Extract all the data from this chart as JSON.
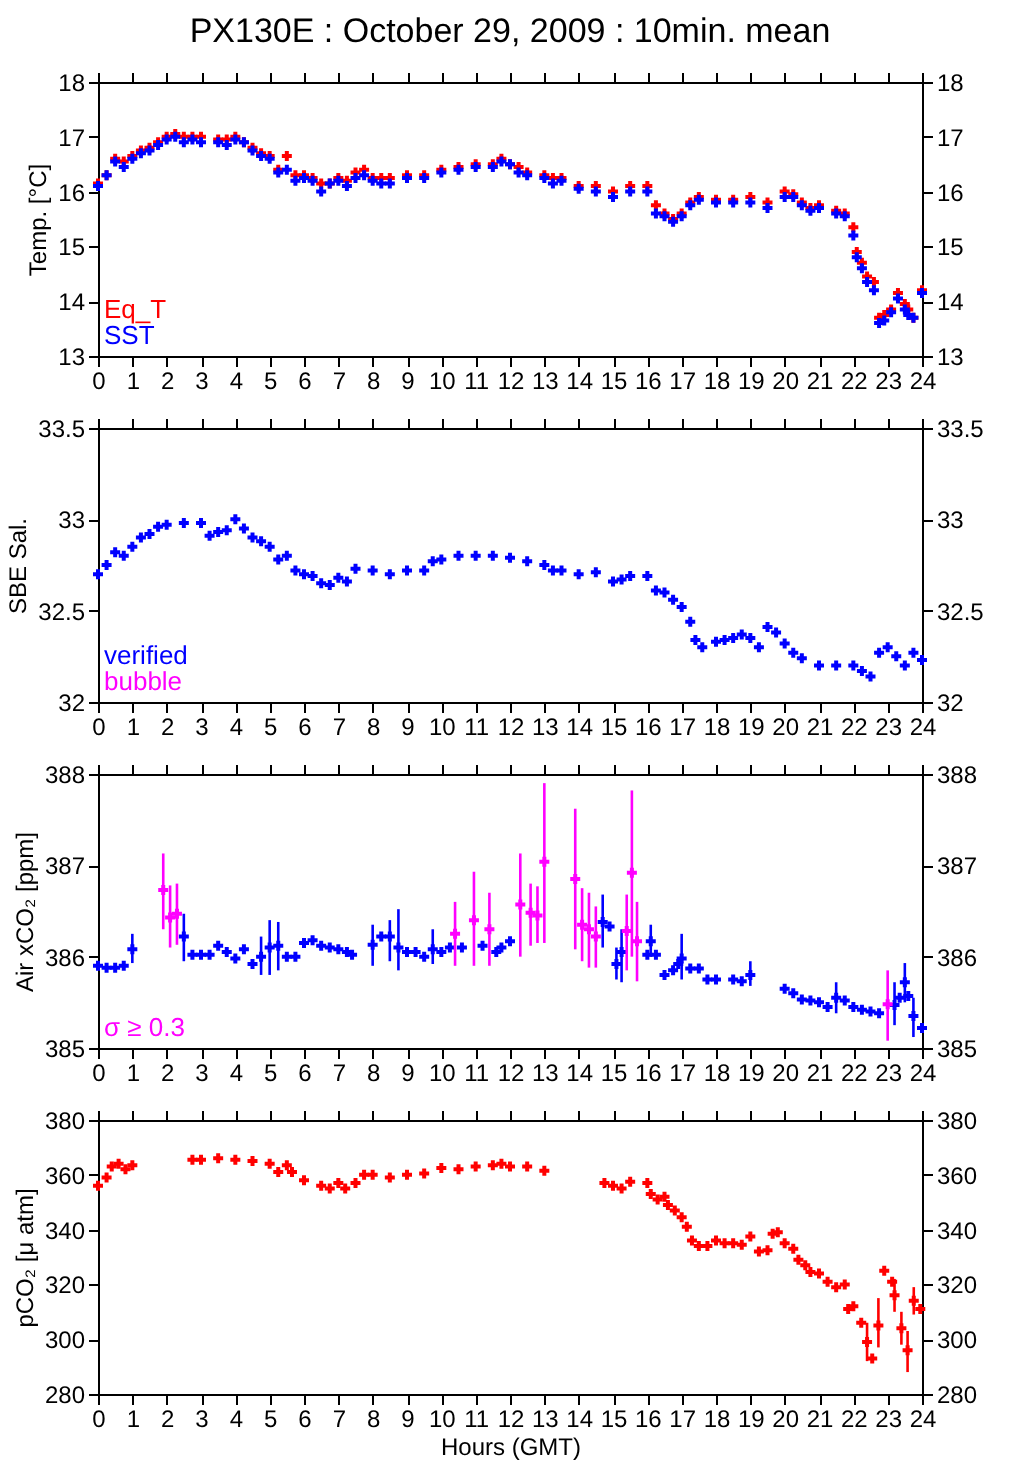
{
  "chart_data": [
    {
      "type": "scatter",
      "title": "PX130E : October 29, 2009 : 10min. mean",
      "ylabel": "Temp. [°C]",
      "xlim": [
        0,
        24
      ],
      "xticks": [
        0,
        1,
        2,
        3,
        4,
        5,
        6,
        7,
        8,
        9,
        10,
        11,
        12,
        13,
        14,
        15,
        16,
        17,
        18,
        19,
        20,
        21,
        22,
        23,
        24
      ],
      "ylim": [
        13,
        18
      ],
      "yticks": [
        13,
        14,
        15,
        16,
        17,
        18
      ],
      "y2lim": [
        13,
        18
      ],
      "y2ticks": [
        13,
        14,
        15,
        16,
        17,
        18
      ],
      "marker": "cross",
      "legend": "bottom left",
      "x": [
        0,
        0.25,
        0.5,
        0.75,
        1,
        1.25,
        1.5,
        1.75,
        2,
        2.25,
        2.5,
        2.75,
        3,
        3.5,
        3.75,
        4,
        4.25,
        4.5,
        4.75,
        5,
        5.25,
        5.5,
        5.75,
        6,
        6.25,
        6.5,
        6.75,
        7,
        7.25,
        7.5,
        7.75,
        8,
        8.25,
        8.5,
        9,
        9.5,
        10,
        10.5,
        11,
        11.5,
        11.75,
        12,
        12.25,
        12.5,
        13,
        13.25,
        13.5,
        14,
        14.5,
        15,
        15.5,
        16,
        16.25,
        16.5,
        16.75,
        17,
        17.25,
        17.5,
        18,
        18.5,
        19,
        19.5,
        20,
        20.25,
        20.5,
        20.75,
        21,
        21.5,
        21.75,
        22,
        22.1,
        22.25,
        22.4,
        22.6,
        22.75,
        22.9,
        23.1,
        23.3,
        23.5,
        23.6,
        23.75,
        24
      ],
      "series": [
        {
          "name": "Eq_T",
          "color": "#ff0000",
          "values": [
            16.15,
            16.3,
            16.6,
            16.55,
            16.65,
            16.75,
            16.8,
            16.9,
            17.0,
            17.05,
            17.0,
            17.0,
            17.0,
            16.95,
            16.95,
            17.0,
            16.9,
            16.8,
            16.7,
            16.65,
            16.4,
            16.65,
            16.3,
            16.3,
            16.25,
            16.15,
            16.15,
            16.25,
            16.2,
            16.35,
            16.4,
            16.25,
            16.25,
            16.25,
            16.3,
            16.3,
            16.4,
            16.45,
            16.5,
            16.5,
            16.6,
            16.5,
            16.45,
            16.35,
            16.3,
            16.25,
            16.25,
            16.1,
            16.1,
            16.0,
            16.1,
            16.1,
            15.75,
            15.6,
            15.5,
            15.6,
            15.8,
            15.9,
            15.85,
            15.85,
            15.9,
            15.8,
            16.0,
            15.95,
            15.8,
            15.7,
            15.75,
            15.65,
            15.6,
            15.35,
            14.9,
            14.7,
            14.45,
            14.35,
            13.7,
            13.75,
            13.85,
            14.15,
            13.95,
            13.85,
            13.7,
            14.2
          ]
        },
        {
          "name": "SST",
          "color": "#0000ff",
          "values": [
            16.1,
            16.3,
            16.55,
            16.45,
            16.6,
            16.7,
            16.75,
            16.85,
            16.95,
            17.0,
            16.9,
            16.95,
            16.9,
            16.9,
            16.85,
            16.95,
            16.9,
            16.75,
            16.65,
            16.6,
            16.35,
            16.4,
            16.2,
            16.25,
            16.2,
            16.0,
            16.15,
            16.2,
            16.1,
            16.25,
            16.3,
            16.2,
            16.15,
            16.15,
            16.25,
            16.25,
            16.35,
            16.4,
            16.45,
            16.45,
            16.55,
            16.5,
            16.35,
            16.3,
            16.25,
            16.15,
            16.2,
            16.05,
            16.0,
            15.9,
            16.0,
            16.0,
            15.6,
            15.55,
            15.45,
            15.55,
            15.75,
            15.85,
            15.8,
            15.8,
            15.8,
            15.7,
            15.9,
            15.9,
            15.75,
            15.65,
            15.7,
            15.6,
            15.55,
            15.2,
            14.8,
            14.6,
            14.35,
            14.2,
            13.6,
            13.65,
            13.8,
            14.05,
            13.85,
            13.75,
            13.7,
            14.15
          ]
        }
      ]
    },
    {
      "type": "scatter",
      "ylabel": "SBE Sal.",
      "xlim": [
        0,
        24
      ],
      "xticks": [
        0,
        1,
        2,
        3,
        4,
        5,
        6,
        7,
        8,
        9,
        10,
        11,
        12,
        13,
        14,
        15,
        16,
        17,
        18,
        19,
        20,
        21,
        22,
        23,
        24
      ],
      "ylim": [
        32,
        33.5
      ],
      "yticks": [
        32,
        32.5,
        33,
        33.5
      ],
      "y2lim": [
        32,
        33.5
      ],
      "y2ticks": [
        32,
        32.5,
        33,
        33.5
      ],
      "marker": "cross",
      "legend": "bottom left",
      "series": [
        {
          "name": "verified",
          "color": "#0000ff",
          "x": [
            0,
            0.25,
            0.5,
            0.75,
            1,
            1.25,
            1.5,
            1.75,
            2,
            2.5,
            3,
            3.25,
            3.5,
            3.75,
            4,
            4.25,
            4.5,
            4.75,
            5,
            5.25,
            5.5,
            5.75,
            6,
            6.25,
            6.5,
            6.75,
            7,
            7.25,
            7.5,
            8,
            8.5,
            9,
            9.5,
            9.75,
            10,
            10.5,
            11,
            11.5,
            12,
            12.5,
            13,
            13.25,
            13.5,
            14,
            14.5,
            15,
            15.25,
            15.5,
            16,
            16.25,
            16.5,
            16.75,
            17,
            17.25,
            17.4,
            17.6,
            18,
            18.25,
            18.5,
            18.75,
            19,
            19.25,
            19.5,
            19.75,
            20,
            20.25,
            20.5,
            21,
            21.5,
            22,
            22.25,
            22.5,
            22.75,
            23,
            23.25,
            23.5,
            23.75,
            24
          ],
          "values": [
            32.7,
            32.75,
            32.82,
            32.8,
            32.85,
            32.9,
            32.92,
            32.96,
            32.97,
            32.98,
            32.98,
            32.91,
            32.93,
            32.94,
            33.0,
            32.95,
            32.9,
            32.88,
            32.85,
            32.78,
            32.8,
            32.72,
            32.7,
            32.69,
            32.65,
            32.64,
            32.68,
            32.66,
            32.73,
            32.72,
            32.7,
            32.72,
            32.72,
            32.77,
            32.78,
            32.8,
            32.8,
            32.8,
            32.79,
            32.77,
            32.75,
            32.72,
            32.72,
            32.7,
            32.71,
            32.66,
            32.67,
            32.69,
            32.69,
            32.61,
            32.6,
            32.56,
            32.52,
            32.44,
            32.34,
            32.3,
            32.33,
            32.34,
            32.35,
            32.37,
            32.35,
            32.3,
            32.41,
            32.38,
            32.32,
            32.27,
            32.24,
            32.2,
            32.2,
            32.2,
            32.17,
            32.14,
            32.27,
            32.3,
            32.25,
            32.2,
            32.27,
            32.23
          ]
        },
        {
          "name": "bubble",
          "color": "#ff00ff"
        }
      ]
    },
    {
      "type": "scatter",
      "ylabel": "Air xCO₂ [ppm]",
      "xlim": [
        0,
        24
      ],
      "xticks": [
        0,
        1,
        2,
        3,
        4,
        5,
        6,
        7,
        8,
        9,
        10,
        11,
        12,
        13,
        14,
        15,
        16,
        17,
        18,
        19,
        20,
        21,
        22,
        23,
        24
      ],
      "ylim": [
        385,
        388
      ],
      "yticks": [
        385,
        386,
        387,
        388
      ],
      "y2lim": [
        385,
        388
      ],
      "y2ticks": [
        385,
        386,
        387,
        388
      ],
      "marker": "cross",
      "legend": "bottom left",
      "series": [
        {
          "color": "#0000ff",
          "x": [
            0,
            0.25,
            0.5,
            0.75,
            1,
            2.5,
            2.75,
            3,
            3.25,
            3.5,
            3.75,
            4,
            4.25,
            4.5,
            4.75,
            5,
            5.25,
            5.5,
            5.75,
            6,
            6.25,
            6.5,
            6.75,
            7,
            7.25,
            7.4,
            8,
            8.25,
            8.5,
            8.75,
            9,
            9.25,
            9.5,
            9.75,
            10,
            10.25,
            10.6,
            11.2,
            11.6,
            11.75,
            12,
            14.7,
            14.9,
            15.1,
            15.25,
            16,
            16.1,
            16.25,
            16.5,
            16.75,
            16.9,
            17,
            17.25,
            17.5,
            17.75,
            18,
            18.5,
            18.75,
            19,
            20,
            20.25,
            20.5,
            20.75,
            21,
            21.25,
            21.5,
            21.75,
            22,
            22.25,
            22.5,
            22.75,
            23.2,
            23.35,
            23.5,
            23.6,
            23.75,
            24
          ],
          "values": [
            385.9,
            385.88,
            385.88,
            385.9,
            386.08,
            386.22,
            386.02,
            386.02,
            386.02,
            386.12,
            386.05,
            385.98,
            386.08,
            385.92,
            386.0,
            386.1,
            386.12,
            386.0,
            386.0,
            386.15,
            386.18,
            386.12,
            386.1,
            386.08,
            386.05,
            386.02,
            386.13,
            386.22,
            386.22,
            386.1,
            386.05,
            386.05,
            386.0,
            386.08,
            386.05,
            386.1,
            386.1,
            386.12,
            386.05,
            386.1,
            386.17,
            386.38,
            386.33,
            385.92,
            386.05,
            386.02,
            386.17,
            386.02,
            385.8,
            385.85,
            385.92,
            385.98,
            385.87,
            385.87,
            385.75,
            385.75,
            385.75,
            385.73,
            385.8,
            385.65,
            385.6,
            385.53,
            385.52,
            385.5,
            385.45,
            385.55,
            385.52,
            385.45,
            385.42,
            385.4,
            385.38,
            385.47,
            385.55,
            385.72,
            385.57,
            385.35,
            385.22
          ],
          "errors": [
            null,
            null,
            null,
            null,
            [
              385.93,
              386.25
            ],
            [
              385.95,
              386.47
            ],
            null,
            null,
            null,
            null,
            null,
            null,
            null,
            null,
            [
              385.8,
              386.22
            ],
            [
              385.8,
              386.4
            ],
            [
              385.85,
              386.38
            ],
            null,
            null,
            null,
            null,
            null,
            null,
            null,
            null,
            null,
            [
              385.9,
              386.35
            ],
            null,
            [
              385.95,
              386.4
            ],
            [
              385.85,
              386.52
            ],
            null,
            null,
            null,
            [
              385.92,
              386.3
            ],
            null,
            null,
            null,
            null,
            null,
            null,
            null,
            [
              386.1,
              386.68
            ],
            null,
            [
              385.75,
              386.1
            ],
            [
              385.72,
              386.3
            ],
            null,
            [
              386.0,
              386.35
            ],
            null,
            null,
            null,
            null,
            [
              385.75,
              386.25
            ],
            null,
            null,
            null,
            null,
            null,
            null,
            [
              385.68,
              385.95
            ],
            null,
            null,
            null,
            null,
            null,
            null,
            [
              385.38,
              385.72
            ],
            null,
            null,
            null,
            null,
            null,
            [
              385.25,
              385.72
            ],
            null,
            [
              385.5,
              385.93
            ],
            null,
            [
              385.12,
              385.55
            ],
            null
          ]
        },
        {
          "name": "σ ≥ 0.3",
          "color": "#ff00ff",
          "x": [
            1.9,
            2.1,
            2.3,
            10.4,
            10.95,
            11.4,
            12.3,
            12.6,
            12.8,
            13.0,
            13.9,
            14.1,
            14.3,
            14.5,
            15.4,
            15.55,
            15.7,
            23.0
          ],
          "values": [
            386.73,
            386.43,
            386.47,
            386.25,
            386.4,
            386.3,
            386.57,
            386.48,
            386.45,
            387.04,
            386.85,
            386.35,
            386.3,
            386.22,
            386.28,
            386.92,
            386.17,
            385.48
          ],
          "errors": [
            [
              386.3,
              387.13
            ],
            [
              386.1,
              386.78
            ],
            [
              386.13,
              386.8
            ],
            [
              385.9,
              386.6
            ],
            [
              385.9,
              386.93
            ],
            [
              385.9,
              386.7
            ],
            [
              386.0,
              387.13
            ],
            [
              386.12,
              386.8
            ],
            [
              386.15,
              386.77
            ],
            [
              386.15,
              387.9
            ],
            [
              386.08,
              387.62
            ],
            [
              385.95,
              386.75
            ],
            [
              385.88,
              386.7
            ],
            [
              385.88,
              386.55
            ],
            [
              385.85,
              386.68
            ],
            [
              386.0,
              387.82
            ],
            [
              385.73,
              386.6
            ],
            [
              385.08,
              385.85
            ]
          ]
        }
      ]
    },
    {
      "type": "scatter",
      "ylabel": "pCO₂ [μ atm]",
      "xlabel": "Hours (GMT)",
      "xlim": [
        0,
        24
      ],
      "xticks": [
        0,
        1,
        2,
        3,
        4,
        5,
        6,
        7,
        8,
        9,
        10,
        11,
        12,
        13,
        14,
        15,
        16,
        17,
        18,
        19,
        20,
        21,
        22,
        23,
        24
      ],
      "ylim": [
        280,
        380
      ],
      "yticks": [
        280,
        300,
        320,
        340,
        360,
        380
      ],
      "y2lim": [
        280,
        380
      ],
      "y2ticks": [
        280,
        300,
        320,
        340,
        360,
        380
      ],
      "marker": "cross",
      "series": [
        {
          "color": "#ff0000",
          "x": [
            0,
            0.25,
            0.4,
            0.6,
            0.8,
            1,
            2.75,
            3,
            3.5,
            4,
            4.5,
            5,
            5.25,
            5.5,
            5.65,
            6,
            6.5,
            6.75,
            7,
            7.2,
            7.5,
            7.75,
            8,
            8.5,
            9,
            9.5,
            10,
            10.5,
            11,
            11.5,
            11.75,
            12,
            12.5,
            13,
            14.75,
            15,
            15.25,
            15.5,
            16,
            16.1,
            16.3,
            16.5,
            16.6,
            16.8,
            17,
            17.15,
            17.3,
            17.5,
            17.75,
            18,
            18.25,
            18.5,
            18.75,
            19,
            19.25,
            19.5,
            19.65,
            19.8,
            20,
            20.25,
            20.4,
            20.6,
            20.75,
            21,
            21.25,
            21.5,
            21.75,
            21.85,
            22,
            22.23,
            22.4,
            22.55,
            22.73,
            22.9,
            23.13,
            23.2,
            23.4,
            23.58,
            23.76,
            23.95
          ],
          "values": [
            356,
            359,
            363,
            364,
            362,
            363.5,
            365.5,
            365.5,
            366,
            365.5,
            365,
            364,
            361,
            363.5,
            361,
            358,
            356,
            355,
            357,
            355,
            357,
            360,
            360,
            359,
            360,
            360.5,
            362.5,
            362,
            363,
            363.5,
            364,
            363,
            363,
            361.5,
            357,
            356,
            355,
            357.5,
            357,
            353,
            351,
            352,
            349,
            347,
            344.5,
            341,
            336,
            334,
            334,
            336,
            335,
            335,
            334.5,
            337.5,
            332,
            332.5,
            338.5,
            339,
            335,
            333,
            329,
            327,
            324.5,
            324,
            321,
            319,
            320,
            311,
            312,
            306,
            299,
            293,
            305,
            325,
            321,
            316,
            304,
            296,
            314,
            311
          ],
          "errors": [
            null,
            null,
            null,
            null,
            null,
            null,
            null,
            null,
            null,
            null,
            null,
            null,
            null,
            null,
            null,
            null,
            null,
            null,
            null,
            null,
            null,
            null,
            null,
            null,
            null,
            null,
            null,
            null,
            null,
            null,
            null,
            null,
            null,
            null,
            null,
            null,
            null,
            null,
            null,
            null,
            null,
            null,
            null,
            null,
            null,
            null,
            null,
            null,
            null,
            null,
            null,
            null,
            null,
            null,
            null,
            null,
            null,
            null,
            null,
            null,
            null,
            null,
            null,
            null,
            null,
            null,
            null,
            null,
            null,
            null,
            [
              292,
              306
            ],
            null,
            [
              297,
              315
            ],
            null,
            null,
            [
              310,
              322
            ],
            [
              298,
              310
            ],
            [
              288,
              303
            ],
            [
              309,
              319
            ],
            null
          ]
        }
      ]
    }
  ]
}
